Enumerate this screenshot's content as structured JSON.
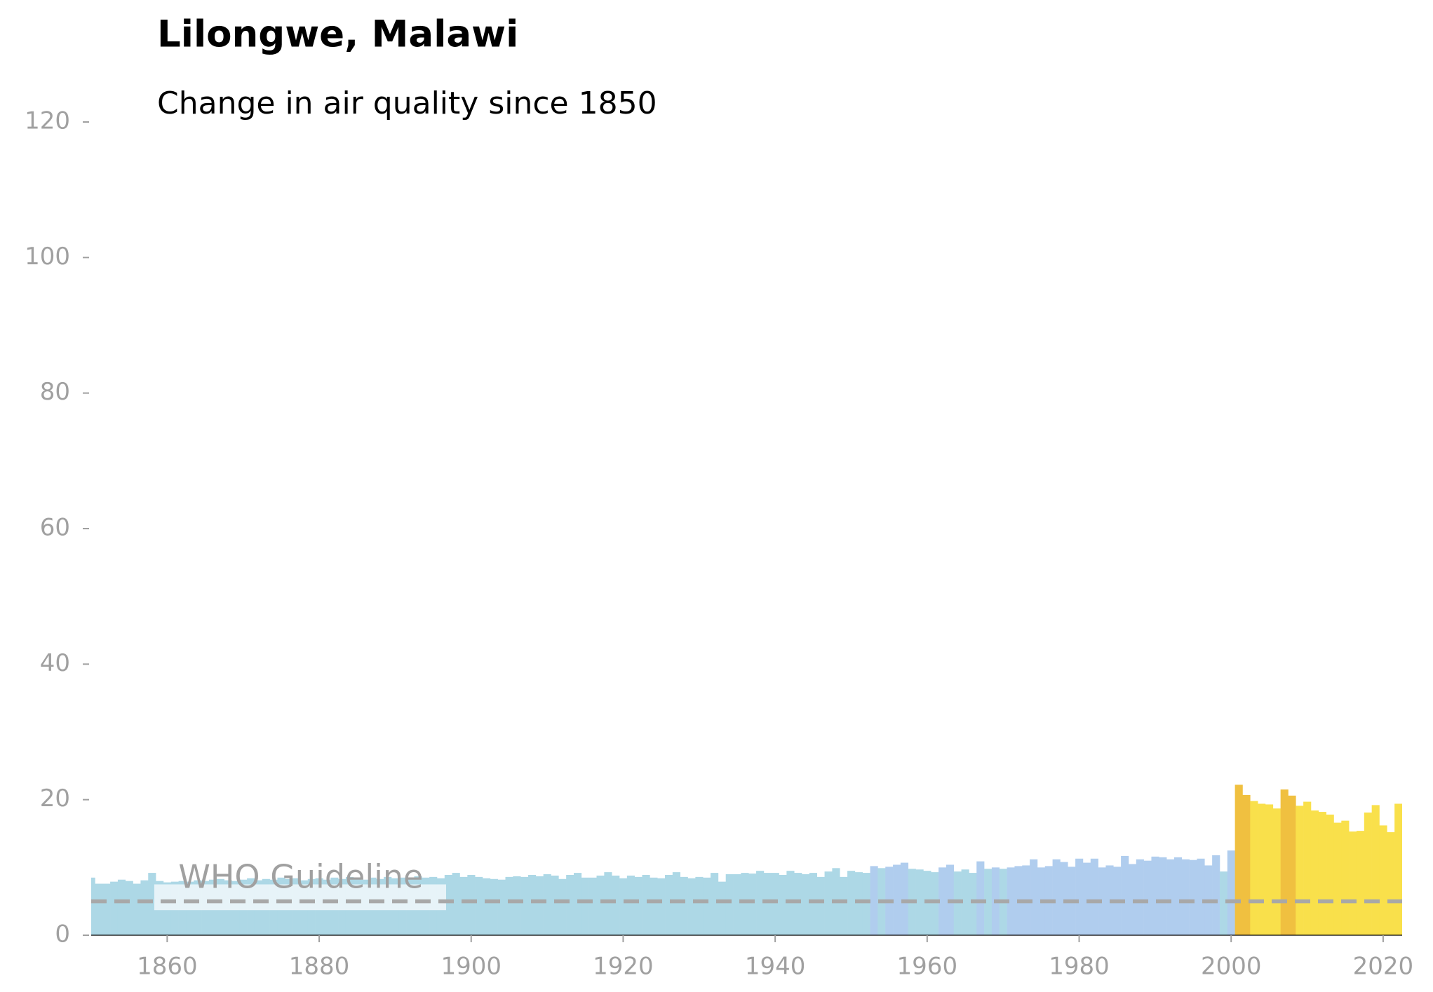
{
  "chart_data": {
    "type": "bar",
    "title": "Lilongwe, Malawi",
    "subtitle": "Change in air quality since 1850",
    "x": [
      1850,
      1851,
      1852,
      1853,
      1854,
      1855,
      1856,
      1857,
      1858,
      1859,
      1860,
      1861,
      1862,
      1863,
      1864,
      1865,
      1866,
      1867,
      1868,
      1869,
      1870,
      1871,
      1872,
      1873,
      1874,
      1875,
      1876,
      1877,
      1878,
      1879,
      1880,
      1881,
      1882,
      1883,
      1884,
      1885,
      1886,
      1887,
      1888,
      1889,
      1890,
      1891,
      1892,
      1893,
      1894,
      1895,
      1896,
      1897,
      1898,
      1899,
      1900,
      1901,
      1902,
      1903,
      1904,
      1905,
      1906,
      1907,
      1908,
      1909,
      1910,
      1911,
      1912,
      1913,
      1914,
      1915,
      1916,
      1917,
      1918,
      1919,
      1920,
      1921,
      1922,
      1923,
      1924,
      1925,
      1926,
      1927,
      1928,
      1929,
      1930,
      1931,
      1932,
      1933,
      1934,
      1935,
      1936,
      1937,
      1938,
      1939,
      1940,
      1941,
      1942,
      1943,
      1944,
      1945,
      1946,
      1947,
      1948,
      1949,
      1950,
      1951,
      1952,
      1953,
      1954,
      1955,
      1956,
      1957,
      1958,
      1959,
      1960,
      1961,
      1962,
      1963,
      1964,
      1965,
      1966,
      1967,
      1968,
      1969,
      1970,
      1971,
      1972,
      1973,
      1974,
      1975,
      1976,
      1977,
      1978,
      1979,
      1980,
      1981,
      1982,
      1983,
      1984,
      1985,
      1986,
      1987,
      1988,
      1989,
      1990,
      1991,
      1992,
      1993,
      1994,
      1995,
      1996,
      1997,
      1998,
      1999,
      2000,
      2001,
      2002,
      2003,
      2004,
      2005,
      2006,
      2007,
      2008,
      2009,
      2010,
      2011,
      2012,
      2013,
      2014,
      2015,
      2016,
      2017,
      2018,
      2019,
      2020,
      2021,
      2022
    ],
    "values": [
      8.5,
      7.6,
      7.6,
      7.9,
      8.2,
      8.0,
      7.6,
      8.1,
      9.2,
      8.0,
      7.8,
      7.9,
      8.0,
      7.9,
      8.1,
      8.0,
      8.2,
      8.3,
      8.1,
      8.0,
      8.2,
      8.4,
      8.1,
      8.3,
      8.2,
      8.5,
      8.3,
      8.4,
      8.1,
      8.3,
      8.4,
      8.2,
      8.5,
      8.3,
      8.6,
      8.4,
      8.2,
      8.5,
      8.3,
      8.6,
      8.4,
      8.5,
      8.3,
      8.7,
      8.5,
      8.6,
      8.4,
      8.9,
      9.2,
      8.6,
      8.9,
      8.6,
      8.4,
      8.3,
      8.2,
      8.6,
      8.7,
      8.6,
      8.9,
      8.7,
      9.0,
      8.8,
      8.3,
      8.9,
      9.2,
      8.5,
      8.5,
      8.8,
      9.3,
      8.8,
      8.4,
      8.8,
      8.6,
      8.9,
      8.5,
      8.4,
      8.9,
      9.3,
      8.6,
      8.4,
      8.6,
      8.5,
      9.2,
      7.9,
      9.0,
      9.0,
      9.2,
      9.1,
      9.5,
      9.2,
      9.2,
      8.9,
      9.5,
      9.2,
      9.0,
      9.2,
      8.6,
      9.4,
      9.9,
      8.6,
      9.5,
      9.3,
      9.2,
      10.2,
      9.9,
      10.1,
      10.4,
      10.7,
      9.8,
      9.7,
      9.5,
      9.3,
      10.0,
      10.4,
      9.4,
      9.7,
      9.2,
      10.9,
      9.8,
      10.0,
      9.8,
      10.0,
      10.2,
      10.3,
      11.2,
      10.0,
      10.2,
      11.2,
      10.8,
      10.1,
      11.3,
      10.7,
      11.3,
      10.0,
      10.3,
      10.1,
      11.7,
      10.5,
      11.2,
      11.0,
      11.6,
      11.5,
      11.2,
      11.5,
      11.2,
      11.1,
      11.3,
      10.3,
      11.8,
      9.4,
      12.5,
      22.2,
      20.7,
      19.8,
      19.4,
      19.3,
      18.7,
      21.5,
      20.6,
      19.1,
      19.7,
      18.4,
      18.2,
      17.8,
      16.6,
      16.9,
      15.3,
      15.4,
      18.1,
      19.2,
      16.2,
      15.2,
      19.4
    ],
    "colors": [
      "#add8e6",
      "#add8e6",
      "#add8e6",
      "#add8e6",
      "#add8e6",
      "#add8e6",
      "#add8e6",
      "#add8e6",
      "#add8e6",
      "#add8e6",
      "#add8e6",
      "#add8e6",
      "#add8e6",
      "#add8e6",
      "#add8e6",
      "#add8e6",
      "#add8e6",
      "#add8e6",
      "#add8e6",
      "#add8e6",
      "#add8e6",
      "#add8e6",
      "#add8e6",
      "#add8e6",
      "#add8e6",
      "#add8e6",
      "#add8e6",
      "#add8e6",
      "#add8e6",
      "#add8e6",
      "#add8e6",
      "#add8e6",
      "#add8e6",
      "#add8e6",
      "#add8e6",
      "#add8e6",
      "#add8e6",
      "#add8e6",
      "#add8e6",
      "#add8e6",
      "#add8e6",
      "#add8e6",
      "#add8e6",
      "#add8e6",
      "#add8e6",
      "#add8e6",
      "#add8e6",
      "#add8e6",
      "#add8e6",
      "#add8e6",
      "#add8e6",
      "#add8e6",
      "#add8e6",
      "#add8e6",
      "#add8e6",
      "#add8e6",
      "#add8e6",
      "#add8e6",
      "#add8e6",
      "#add8e6",
      "#add8e6",
      "#add8e6",
      "#add8e6",
      "#add8e6",
      "#add8e6",
      "#add8e6",
      "#add8e6",
      "#add8e6",
      "#add8e6",
      "#add8e6",
      "#add8e6",
      "#add8e6",
      "#add8e6",
      "#add8e6",
      "#add8e6",
      "#add8e6",
      "#add8e6",
      "#add8e6",
      "#add8e6",
      "#add8e6",
      "#add8e6",
      "#add8e6",
      "#add8e6",
      "#add8e6",
      "#add8e6",
      "#add8e6",
      "#add8e6",
      "#add8e6",
      "#add8e6",
      "#add8e6",
      "#add8e6",
      "#add8e6",
      "#add8e6",
      "#add8e6",
      "#add8e6",
      "#add8e6",
      "#add8e6",
      "#add8e6",
      "#add8e6",
      "#add8e6",
      "#add8e6",
      "#add8e6",
      "#add8e6",
      "#b0cdee",
      "#add8e6",
      "#b0cdee",
      "#b0cdee",
      "#b0cdee",
      "#add8e6",
      "#add8e6",
      "#add8e6",
      "#add8e6",
      "#b0cdee",
      "#b0cdee",
      "#add8e6",
      "#add8e6",
      "#add8e6",
      "#b0cdee",
      "#add8e6",
      "#b0cdee",
      "#add8e6",
      "#b0cdee",
      "#b0cdee",
      "#b0cdee",
      "#b0cdee",
      "#b0cdee",
      "#b0cdee",
      "#b0cdee",
      "#b0cdee",
      "#b0cdee",
      "#b0cdee",
      "#b0cdee",
      "#b0cdee",
      "#b0cdee",
      "#b0cdee",
      "#b0cdee",
      "#b0cdee",
      "#b0cdee",
      "#b0cdee",
      "#b0cdee",
      "#b0cdee",
      "#b0cdee",
      "#b0cdee",
      "#b0cdee",
      "#b0cdee",
      "#b0cdee",
      "#b0cdee",
      "#b0cdee",
      "#b0cdee",
      "#add8e6",
      "#b0cdee",
      "#f0c040",
      "#f0c040",
      "#f9e04b",
      "#f9e04b",
      "#f9e04b",
      "#f9e04b",
      "#f0c040",
      "#f0c040",
      "#f9e04b",
      "#f9e04b",
      "#f9e04b",
      "#f9e04b",
      "#f9e04b",
      "#f9e04b",
      "#f9e04b",
      "#f9e04b",
      "#f9e04b",
      "#f9e04b",
      "#f9e04b",
      "#f9e04b",
      "#f9e04b",
      "#f9e04b"
    ],
    "guideline": {
      "value": 5,
      "label": "WHO Guideline"
    },
    "xlim": [
      1850,
      2022.5
    ],
    "ylim": [
      0,
      120
    ],
    "xticks": [
      1860,
      1880,
      1900,
      1920,
      1940,
      1960,
      1980,
      2000,
      2020
    ],
    "yticks": [
      0,
      20,
      40,
      60,
      80,
      100,
      120
    ]
  }
}
